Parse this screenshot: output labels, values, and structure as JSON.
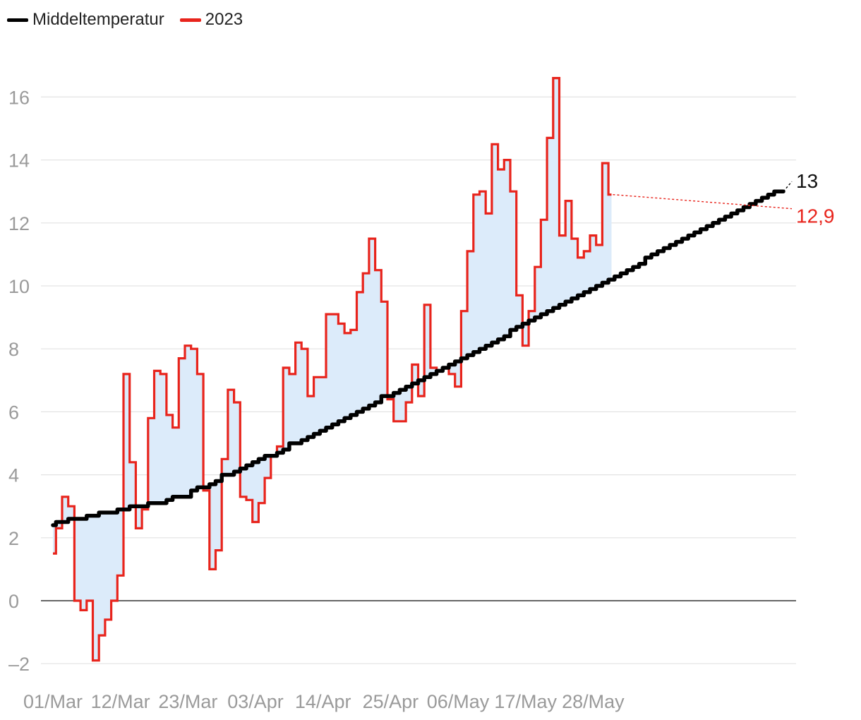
{
  "legend": {
    "items": [
      {
        "label": "Middeltemperatur",
        "color": "#000000"
      },
      {
        "label": "2023",
        "color": "#e8241c"
      }
    ]
  },
  "colors": {
    "normal": "#000000",
    "actual": "#e8241c",
    "fill": "#dcebfa",
    "grid": "#e3e3e3",
    "zero": "#333333",
    "tick": "#9a9a9a"
  },
  "chart_data": {
    "type": "line",
    "step": true,
    "x_start": "01/Mar",
    "x_tick_labels": [
      "01/Mar",
      "12/Mar",
      "23/Mar",
      "03/Apr",
      "14/Apr",
      "25/Apr",
      "06/May",
      "17/May",
      "28/May"
    ],
    "y_ticks": [
      "-2",
      "0",
      "2",
      "4",
      "6",
      "8",
      "10",
      "12",
      "14",
      "16"
    ],
    "ylim": [
      -2.4,
      17.2
    ],
    "grid": true,
    "legend_position": "top-left",
    "end_labels": {
      "normal": "13",
      "actual": "12,9"
    },
    "series": [
      {
        "name": "Middeltemperatur",
        "values": [
          2.4,
          2.5,
          2.5,
          2.6,
          2.6,
          2.6,
          2.7,
          2.7,
          2.8,
          2.8,
          2.8,
          2.9,
          2.9,
          3.0,
          3.0,
          3.0,
          3.1,
          3.1,
          3.1,
          3.2,
          3.3,
          3.3,
          3.3,
          3.5,
          3.6,
          3.6,
          3.7,
          3.8,
          4.0,
          4.0,
          4.1,
          4.2,
          4.3,
          4.4,
          4.5,
          4.6,
          4.6,
          4.7,
          4.8,
          5.0,
          5.0,
          5.1,
          5.2,
          5.3,
          5.4,
          5.5,
          5.6,
          5.7,
          5.8,
          5.9,
          6.0,
          6.1,
          6.2,
          6.3,
          6.5,
          6.5,
          6.6,
          6.7,
          6.8,
          6.9,
          7.0,
          7.1,
          7.2,
          7.3,
          7.4,
          7.5,
          7.6,
          7.7,
          7.8,
          7.9,
          8.0,
          8.1,
          8.2,
          8.3,
          8.4,
          8.6,
          8.7,
          8.8,
          8.9,
          9.0,
          9.1,
          9.2,
          9.3,
          9.4,
          9.5,
          9.6,
          9.7,
          9.8,
          9.9,
          10.0,
          10.1,
          10.2,
          10.3,
          10.4,
          10.5,
          10.6,
          10.7,
          10.9,
          11.0,
          11.1,
          11.2,
          11.3,
          11.4,
          11.5,
          11.6,
          11.7,
          11.8,
          11.9,
          12.0,
          12.1,
          12.2,
          12.3,
          12.4,
          12.5,
          12.6,
          12.7,
          12.8,
          12.9,
          13.0,
          13.0
        ]
      },
      {
        "name": "2023",
        "values": [
          1.5,
          2.3,
          3.3,
          3.0,
          0.0,
          -0.3,
          0.0,
          -1.9,
          -1.1,
          -0.6,
          0.0,
          0.8,
          7.2,
          4.4,
          2.3,
          2.9,
          5.8,
          7.3,
          7.2,
          5.9,
          5.5,
          7.7,
          8.1,
          8.0,
          7.2,
          3.5,
          1.0,
          1.6,
          4.5,
          6.7,
          6.3,
          3.3,
          3.2,
          2.5,
          3.1,
          3.9,
          4.6,
          4.9,
          7.4,
          7.2,
          8.2,
          8.0,
          6.5,
          7.1,
          7.1,
          9.1,
          9.1,
          8.8,
          8.5,
          8.6,
          9.8,
          10.4,
          11.5,
          10.5,
          9.5,
          6.4,
          5.7,
          5.7,
          6.3,
          7.5,
          6.5,
          9.4,
          7.4,
          7.3,
          7.4,
          7.2,
          6.8,
          9.2,
          11.1,
          12.9,
          13.0,
          12.3,
          14.5,
          13.7,
          14.0,
          13.0,
          9.7,
          8.1,
          9.2,
          10.6,
          12.1,
          14.7,
          16.6,
          11.6,
          12.7,
          11.5,
          10.9,
          11.1,
          11.6,
          11.3,
          13.9,
          12.9
        ]
      }
    ]
  }
}
